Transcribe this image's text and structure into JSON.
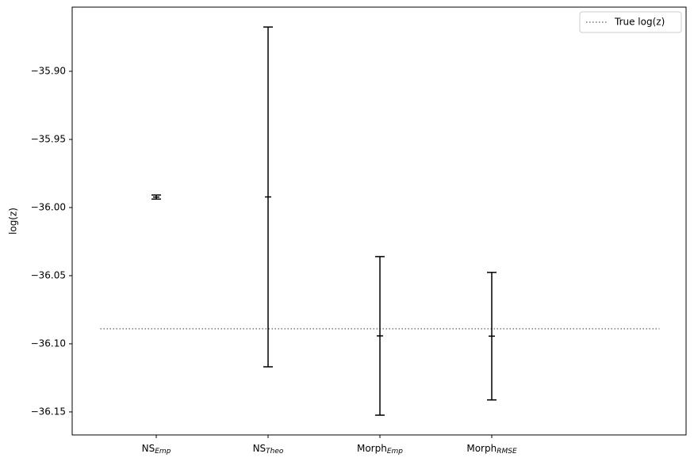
{
  "chart_data": {
    "type": "errorbar",
    "y_label": "log(z)",
    "categories": [
      {
        "label": "NS",
        "subscript": "Emp"
      },
      {
        "label": "NS",
        "subscript": "Theo"
      },
      {
        "label": "Morph",
        "subscript": "Emp"
      },
      {
        "label": "Morph",
        "subscript": "RMSE"
      }
    ],
    "values": [
      -35.9923,
      -35.9922,
      -36.0942,
      -36.0944
    ],
    "errors": [
      0.0015,
      0.1247,
      0.0582,
      0.0468
    ],
    "color": "#000000",
    "reference": {
      "name": "True log(z)",
      "value": -36.089,
      "color": "#777777",
      "style": "dotted"
    },
    "ylim": [
      -36.1669,
      -35.8529
    ],
    "yticks": [
      {
        "value": -35.9,
        "label": "−35.90"
      },
      {
        "value": -35.95,
        "label": "−35.95"
      },
      {
        "value": -36.0,
        "label": "−36.00"
      },
      {
        "value": -36.05,
        "label": "−36.05"
      },
      {
        "value": -36.1,
        "label": "−36.10"
      },
      {
        "value": -36.15,
        "label": "−36.15"
      }
    ],
    "grid": false,
    "legend": "upper right"
  }
}
